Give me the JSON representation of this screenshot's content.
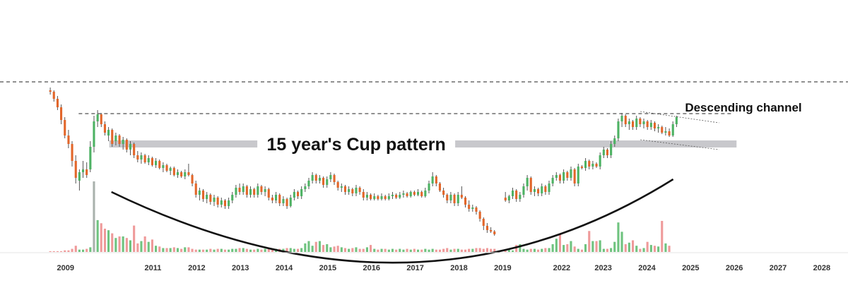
{
  "chart_data": {
    "type": "candlestick",
    "title": "",
    "xlabel": "",
    "ylabel": "",
    "x_ticks": [
      "2009",
      "2011",
      "2012",
      "2013",
      "2014",
      "2015",
      "2016",
      "2017",
      "2018",
      "2019",
      "2022",
      "2023",
      "2024",
      "2025",
      "2026",
      "2027",
      "2028"
    ],
    "x_tick_positions": [
      2009.0,
      2011.0,
      2012.0,
      2013.0,
      2014.0,
      2015.0,
      2016.0,
      2017.0,
      2018.0,
      2019.0,
      2020.35,
      2021.3,
      2022.3,
      2023.3,
      2024.3,
      2025.3,
      2026.3
    ],
    "x_range": [
      2007.5,
      2026.9
    ],
    "price_range": [
      0,
      100
    ],
    "volume_range": [
      0,
      100
    ],
    "grid": false,
    "candles_x_start": 2008.65,
    "candles_x_step": 0.0833,
    "candles": [
      {
        "o": 96,
        "h": 98,
        "l": 93,
        "c": 95
      },
      {
        "o": 95,
        "h": 96,
        "l": 88,
        "c": 90
      },
      {
        "o": 90,
        "h": 92,
        "l": 82,
        "c": 84
      },
      {
        "o": 84,
        "h": 86,
        "l": 72,
        "c": 75
      },
      {
        "o": 75,
        "h": 77,
        "l": 62,
        "c": 64
      },
      {
        "o": 64,
        "h": 68,
        "l": 55,
        "c": 58
      },
      {
        "o": 58,
        "h": 60,
        "l": 42,
        "c": 46
      },
      {
        "o": 46,
        "h": 50,
        "l": 30,
        "c": 34
      },
      {
        "o": 32,
        "h": 40,
        "l": 25,
        "c": 38
      },
      {
        "o": 38,
        "h": 46,
        "l": 34,
        "c": 40
      },
      {
        "o": 40,
        "h": 45,
        "l": 34,
        "c": 36
      },
      {
        "o": 40,
        "h": 60,
        "l": 38,
        "c": 56
      },
      {
        "o": 56,
        "h": 78,
        "l": 52,
        "c": 74
      },
      {
        "o": 74,
        "h": 82,
        "l": 70,
        "c": 79
      },
      {
        "o": 79,
        "h": 80,
        "l": 70,
        "c": 72
      },
      {
        "o": 72,
        "h": 74,
        "l": 64,
        "c": 66
      },
      {
        "o": 64,
        "h": 70,
        "l": 60,
        "c": 68
      },
      {
        "o": 68,
        "h": 69,
        "l": 56,
        "c": 58
      },
      {
        "o": 60,
        "h": 66,
        "l": 57,
        "c": 64
      },
      {
        "o": 64,
        "h": 65,
        "l": 56,
        "c": 58
      },
      {
        "o": 58,
        "h": 63,
        "l": 54,
        "c": 61
      },
      {
        "o": 61,
        "h": 62,
        "l": 52,
        "c": 54
      },
      {
        "o": 54,
        "h": 60,
        "l": 50,
        "c": 58
      },
      {
        "o": 58,
        "h": 59,
        "l": 48,
        "c": 50
      },
      {
        "o": 50,
        "h": 53,
        "l": 45,
        "c": 47
      },
      {
        "o": 47,
        "h": 52,
        "l": 44,
        "c": 50
      },
      {
        "o": 50,
        "h": 51,
        "l": 44,
        "c": 45
      },
      {
        "o": 45,
        "h": 50,
        "l": 43,
        "c": 48
      },
      {
        "o": 48,
        "h": 49,
        "l": 42,
        "c": 43
      },
      {
        "o": 43,
        "h": 48,
        "l": 41,
        "c": 46
      },
      {
        "o": 46,
        "h": 47,
        "l": 40,
        "c": 41
      },
      {
        "o": 41,
        "h": 45,
        "l": 38,
        "c": 43
      },
      {
        "o": 43,
        "h": 44,
        "l": 38,
        "c": 39
      },
      {
        "o": 39,
        "h": 42,
        "l": 36,
        "c": 41
      },
      {
        "o": 41,
        "h": 42,
        "l": 35,
        "c": 36
      },
      {
        "o": 36,
        "h": 40,
        "l": 34,
        "c": 38
      },
      {
        "o": 38,
        "h": 39,
        "l": 34,
        "c": 35
      },
      {
        "o": 35,
        "h": 40,
        "l": 33,
        "c": 38
      },
      {
        "o": 38,
        "h": 44,
        "l": 35,
        "c": 36
      },
      {
        "o": 36,
        "h": 37,
        "l": 28,
        "c": 30
      },
      {
        "o": 30,
        "h": 32,
        "l": 20,
        "c": 22
      },
      {
        "o": 22,
        "h": 27,
        "l": 18,
        "c": 25
      },
      {
        "o": 25,
        "h": 26,
        "l": 17,
        "c": 19
      },
      {
        "o": 19,
        "h": 24,
        "l": 16,
        "c": 22
      },
      {
        "o": 22,
        "h": 23,
        "l": 15,
        "c": 17
      },
      {
        "o": 17,
        "h": 22,
        "l": 14,
        "c": 20
      },
      {
        "o": 20,
        "h": 21,
        "l": 13,
        "c": 15
      },
      {
        "o": 15,
        "h": 20,
        "l": 13,
        "c": 18
      },
      {
        "o": 18,
        "h": 19,
        "l": 12,
        "c": 14
      },
      {
        "o": 14,
        "h": 20,
        "l": 12,
        "c": 18
      },
      {
        "o": 18,
        "h": 24,
        "l": 16,
        "c": 22
      },
      {
        "o": 22,
        "h": 29,
        "l": 20,
        "c": 27
      },
      {
        "o": 27,
        "h": 30,
        "l": 22,
        "c": 24
      },
      {
        "o": 24,
        "h": 30,
        "l": 22,
        "c": 28
      },
      {
        "o": 28,
        "h": 29,
        "l": 20,
        "c": 22
      },
      {
        "o": 22,
        "h": 28,
        "l": 20,
        "c": 26
      },
      {
        "o": 26,
        "h": 27,
        "l": 20,
        "c": 22
      },
      {
        "o": 22,
        "h": 30,
        "l": 20,
        "c": 28
      },
      {
        "o": 28,
        "h": 29,
        "l": 22,
        "c": 24
      },
      {
        "o": 24,
        "h": 28,
        "l": 21,
        "c": 26
      },
      {
        "o": 26,
        "h": 27,
        "l": 18,
        "c": 20
      },
      {
        "o": 20,
        "h": 22,
        "l": 16,
        "c": 18
      },
      {
        "o": 18,
        "h": 24,
        "l": 16,
        "c": 22
      },
      {
        "o": 22,
        "h": 23,
        "l": 14,
        "c": 16
      },
      {
        "o": 16,
        "h": 21,
        "l": 14,
        "c": 19
      },
      {
        "o": 19,
        "h": 20,
        "l": 12,
        "c": 14
      },
      {
        "o": 14,
        "h": 22,
        "l": 13,
        "c": 20
      },
      {
        "o": 20,
        "h": 26,
        "l": 18,
        "c": 24
      },
      {
        "o": 24,
        "h": 25,
        "l": 19,
        "c": 21
      },
      {
        "o": 21,
        "h": 28,
        "l": 19,
        "c": 26
      },
      {
        "o": 26,
        "h": 30,
        "l": 24,
        "c": 28
      },
      {
        "o": 28,
        "h": 34,
        "l": 26,
        "c": 32
      },
      {
        "o": 32,
        "h": 38,
        "l": 30,
        "c": 36
      },
      {
        "o": 36,
        "h": 37,
        "l": 30,
        "c": 32
      },
      {
        "o": 32,
        "h": 36,
        "l": 30,
        "c": 34
      },
      {
        "o": 34,
        "h": 35,
        "l": 27,
        "c": 29
      },
      {
        "o": 29,
        "h": 35,
        "l": 27,
        "c": 33
      },
      {
        "o": 33,
        "h": 38,
        "l": 31,
        "c": 36
      },
      {
        "o": 36,
        "h": 37,
        "l": 29,
        "c": 31
      },
      {
        "o": 31,
        "h": 32,
        "l": 25,
        "c": 27
      },
      {
        "o": 27,
        "h": 30,
        "l": 24,
        "c": 28
      },
      {
        "o": 28,
        "h": 29,
        "l": 22,
        "c": 24
      },
      {
        "o": 24,
        "h": 28,
        "l": 22,
        "c": 26
      },
      {
        "o": 26,
        "h": 27,
        "l": 21,
        "c": 23
      },
      {
        "o": 23,
        "h": 29,
        "l": 21,
        "c": 27
      },
      {
        "o": 27,
        "h": 28,
        "l": 22,
        "c": 24
      },
      {
        "o": 24,
        "h": 26,
        "l": 18,
        "c": 20
      },
      {
        "o": 20,
        "h": 24,
        "l": 18,
        "c": 22
      },
      {
        "o": 22,
        "h": 23,
        "l": 18,
        "c": 19
      },
      {
        "o": 19,
        "h": 23,
        "l": 18,
        "c": 21
      },
      {
        "o": 21,
        "h": 22,
        "l": 18,
        "c": 19
      },
      {
        "o": 19,
        "h": 23,
        "l": 18,
        "c": 21
      },
      {
        "o": 21,
        "h": 22,
        "l": 18,
        "c": 19
      },
      {
        "o": 19,
        "h": 23,
        "l": 18,
        "c": 21
      },
      {
        "o": 21,
        "h": 24,
        "l": 19,
        "c": 22
      },
      {
        "o": 22,
        "h": 23,
        "l": 19,
        "c": 20
      },
      {
        "o": 20,
        "h": 24,
        "l": 19,
        "c": 22
      },
      {
        "o": 22,
        "h": 25,
        "l": 20,
        "c": 23
      },
      {
        "o": 23,
        "h": 24,
        "l": 20,
        "c": 21
      },
      {
        "o": 21,
        "h": 25,
        "l": 20,
        "c": 24
      },
      {
        "o": 24,
        "h": 25,
        "l": 21,
        "c": 22
      },
      {
        "o": 22,
        "h": 26,
        "l": 21,
        "c": 24
      },
      {
        "o": 24,
        "h": 25,
        "l": 20,
        "c": 21
      },
      {
        "o": 21,
        "h": 27,
        "l": 20,
        "c": 25
      },
      {
        "o": 25,
        "h": 32,
        "l": 23,
        "c": 30
      },
      {
        "o": 30,
        "h": 38,
        "l": 28,
        "c": 35
      },
      {
        "o": 35,
        "h": 36,
        "l": 28,
        "c": 30
      },
      {
        "o": 30,
        "h": 31,
        "l": 24,
        "c": 25
      },
      {
        "o": 25,
        "h": 27,
        "l": 20,
        "c": 22
      },
      {
        "o": 22,
        "h": 23,
        "l": 16,
        "c": 18
      },
      {
        "o": 18,
        "h": 24,
        "l": 16,
        "c": 22
      },
      {
        "o": 22,
        "h": 23,
        "l": 14,
        "c": 16
      },
      {
        "o": 16,
        "h": 24,
        "l": 14,
        "c": 22
      },
      {
        "o": 22,
        "h": 28,
        "l": 19,
        "c": 20
      },
      {
        "o": 20,
        "h": 21,
        "l": 13,
        "c": 15
      },
      {
        "o": 15,
        "h": 18,
        "l": 10,
        "c": 12
      },
      {
        "o": 12,
        "h": 15,
        "l": 10,
        "c": 13
      },
      {
        "o": 13,
        "h": 14,
        "l": 8,
        "c": 10
      },
      {
        "o": 10,
        "h": 11,
        "l": 3,
        "c": 5
      },
      {
        "o": 5,
        "h": 6,
        "l": -3,
        "c": 0
      },
      {
        "o": 0,
        "h": 2,
        "l": -5,
        "c": -3
      },
      {
        "o": -3,
        "h": -1,
        "l": -5,
        "c": -4
      },
      {
        "o": -4,
        "h": -3,
        "l": -7,
        "c": -6
      },
      {
        "o": 20,
        "h": 24,
        "l": 17,
        "c": 18
      },
      {
        "o": 18,
        "h": 22,
        "l": 16,
        "c": 21
      },
      {
        "o": 21,
        "h": 27,
        "l": 19,
        "c": 25
      },
      {
        "o": 25,
        "h": 26,
        "l": 17,
        "c": 19
      },
      {
        "o": 19,
        "h": 24,
        "l": 17,
        "c": 22
      },
      {
        "o": 22,
        "h": 30,
        "l": 20,
        "c": 28
      },
      {
        "o": 28,
        "h": 36,
        "l": 25,
        "c": 34
      },
      {
        "o": 34,
        "h": 35,
        "l": 22,
        "c": 24
      },
      {
        "o": 24,
        "h": 28,
        "l": 21,
        "c": 26
      },
      {
        "o": 26,
        "h": 27,
        "l": 21,
        "c": 23
      },
      {
        "o": 23,
        "h": 30,
        "l": 21,
        "c": 28
      },
      {
        "o": 28,
        "h": 29,
        "l": 22,
        "c": 24
      },
      {
        "o": 24,
        "h": 32,
        "l": 22,
        "c": 30
      },
      {
        "o": 30,
        "h": 36,
        "l": 28,
        "c": 34
      },
      {
        "o": 34,
        "h": 38,
        "l": 32,
        "c": 36
      },
      {
        "o": 36,
        "h": 37,
        "l": 30,
        "c": 32
      },
      {
        "o": 32,
        "h": 40,
        "l": 30,
        "c": 38
      },
      {
        "o": 38,
        "h": 39,
        "l": 32,
        "c": 34
      },
      {
        "o": 34,
        "h": 42,
        "l": 32,
        "c": 40
      },
      {
        "o": 40,
        "h": 41,
        "l": 28,
        "c": 30
      },
      {
        "o": 30,
        "h": 44,
        "l": 28,
        "c": 42
      },
      {
        "o": 42,
        "h": 43,
        "l": 40,
        "c": 41
      },
      {
        "o": 41,
        "h": 48,
        "l": 39,
        "c": 46
      },
      {
        "o": 46,
        "h": 47,
        "l": 40,
        "c": 42
      },
      {
        "o": 42,
        "h": 46,
        "l": 40,
        "c": 44
      },
      {
        "o": 44,
        "h": 45,
        "l": 41,
        "c": 42
      },
      {
        "o": 42,
        "h": 52,
        "l": 40,
        "c": 50
      },
      {
        "o": 50,
        "h": 56,
        "l": 48,
        "c": 54
      },
      {
        "o": 54,
        "h": 55,
        "l": 48,
        "c": 50
      },
      {
        "o": 50,
        "h": 60,
        "l": 48,
        "c": 58
      },
      {
        "o": 58,
        "h": 64,
        "l": 56,
        "c": 62
      },
      {
        "o": 62,
        "h": 76,
        "l": 60,
        "c": 74
      },
      {
        "o": 74,
        "h": 80,
        "l": 70,
        "c": 78
      },
      {
        "o": 78,
        "h": 79,
        "l": 70,
        "c": 72
      },
      {
        "o": 72,
        "h": 76,
        "l": 68,
        "c": 74
      },
      {
        "o": 74,
        "h": 75,
        "l": 68,
        "c": 70
      },
      {
        "o": 70,
        "h": 78,
        "l": 68,
        "c": 76
      },
      {
        "o": 76,
        "h": 77,
        "l": 70,
        "c": 72
      },
      {
        "o": 72,
        "h": 76,
        "l": 69,
        "c": 74
      },
      {
        "o": 74,
        "h": 75,
        "l": 68,
        "c": 70
      },
      {
        "o": 70,
        "h": 75,
        "l": 68,
        "c": 73
      },
      {
        "o": 73,
        "h": 74,
        "l": 67,
        "c": 69
      },
      {
        "o": 69,
        "h": 72,
        "l": 66,
        "c": 70
      },
      {
        "o": 70,
        "h": 71,
        "l": 65,
        "c": 66
      },
      {
        "o": 66,
        "h": 70,
        "l": 64,
        "c": 67
      },
      {
        "o": 67,
        "h": 69,
        "l": 63,
        "c": 64
      },
      {
        "o": 64,
        "h": 74,
        "l": 63,
        "c": 72
      },
      {
        "o": 72,
        "h": 78,
        "l": 70,
        "c": 77
      }
    ],
    "candle_gaps": [
      {
        "after_index": 122,
        "skip": 2
      }
    ],
    "volume": [
      1,
      1,
      1,
      1,
      2,
      2,
      4,
      8,
      3,
      3,
      4,
      6,
      32,
      41,
      37,
      30,
      28,
      24,
      18,
      20,
      20,
      18,
      15,
      34,
      11,
      14,
      20,
      13,
      16,
      8,
      7,
      5,
      5,
      5,
      6,
      5,
      4,
      6,
      6,
      4,
      3,
      3,
      3,
      3,
      4,
      3,
      4,
      4,
      3,
      3,
      4,
      4,
      5,
      5,
      4,
      3,
      3,
      4,
      3,
      4,
      4,
      3,
      4,
      4,
      4,
      5,
      5,
      4,
      4,
      5,
      11,
      14,
      8,
      13,
      14,
      9,
      10,
      6,
      7,
      8,
      6,
      5,
      4,
      5,
      6,
      4,
      4,
      6,
      9,
      4,
      3,
      4,
      4,
      3,
      4,
      3,
      4,
      3,
      4,
      3,
      4,
      3,
      3,
      4,
      3,
      4,
      3,
      3,
      4,
      5,
      3,
      4,
      4,
      3,
      3,
      4,
      4,
      5,
      5,
      4,
      5,
      4,
      4,
      3,
      3,
      2,
      9,
      10,
      4,
      3,
      4,
      4,
      3,
      4,
      5,
      5,
      10,
      17,
      23,
      9,
      10,
      14,
      7,
      4,
      3,
      10,
      27,
      14,
      14,
      15,
      4,
      4,
      5,
      13,
      38,
      26,
      10,
      12,
      15,
      8,
      4,
      5,
      13,
      9,
      8,
      7,
      40,
      11,
      8
    ],
    "volume_colors": {
      "up": "#6fc37f",
      "down": "#ef9a9a",
      "spike": "#aab2ad"
    },
    "volume_spike_index": 12,
    "candle_colors": {
      "up": "#4db263",
      "down": "#e2662a",
      "wick": "#555555"
    },
    "cup_curve": {
      "start": [
        2010.05,
        24
      ],
      "bottom": [
        2016.75,
        -26
      ],
      "end": [
        2022.9,
        33
      ]
    },
    "resistance_levels": [
      {
        "y": 102,
        "x_from": 2007.5,
        "x_to": 2026.9
      },
      {
        "y": 79.5,
        "x_from": 2009.3,
        "x_to": 2024.25
      }
    ],
    "cup_rim_band": {
      "y": 58,
      "x_from": 2010.0,
      "x_to": 2024.35
    },
    "channel_lines": [
      {
        "from": [
          2022.15,
          81
        ],
        "to": [
          2023.95,
          73
        ]
      },
      {
        "from": [
          2022.15,
          61
        ],
        "to": [
          2023.95,
          54
        ]
      }
    ],
    "annotations": [
      {
        "text": "15 year's Cup pattern",
        "x": 2015.65,
        "y": 58
      },
      {
        "text": "Descending channel",
        "x": 2023.3,
        "y": 80
      }
    ]
  }
}
